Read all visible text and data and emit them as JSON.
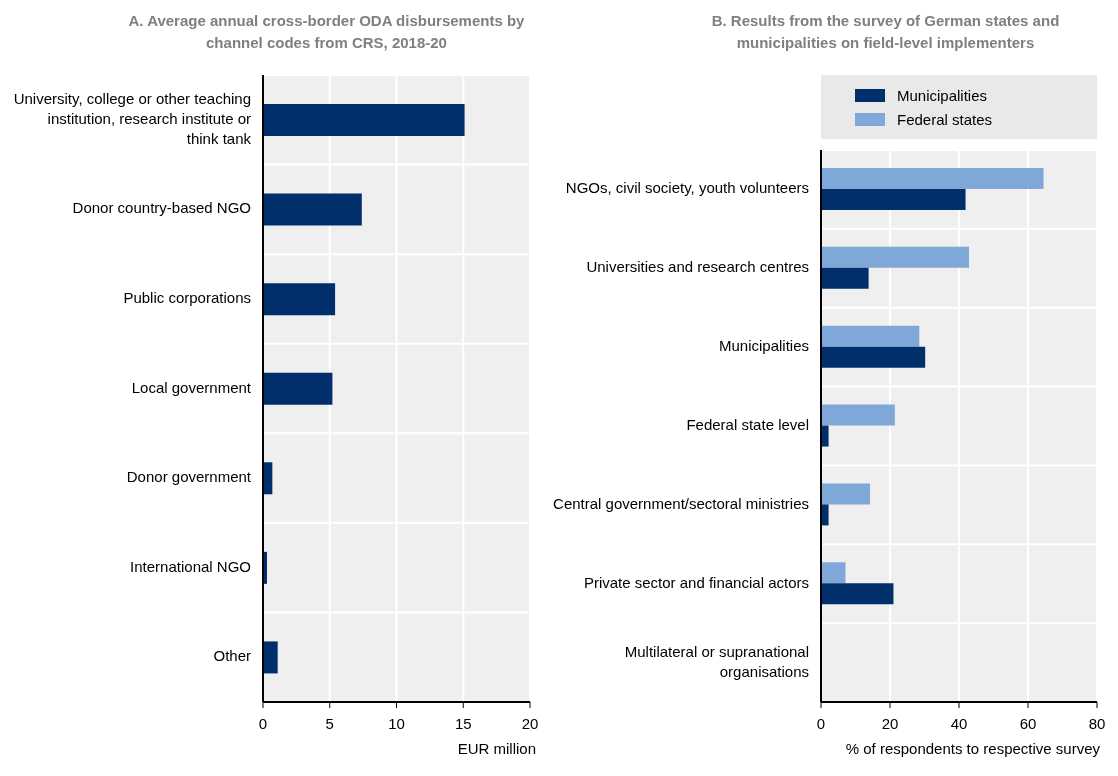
{
  "chart_data": [
    {
      "type": "bar",
      "orientation": "horizontal",
      "title": "A. Average annual cross-border ODA disbursements by channel codes from CRS, 2018-20",
      "xlabel": "EUR million",
      "categories": [
        "University, college or other teaching institution, research institute or think tank",
        "Donor country-based NGO",
        "Public corporations",
        "Local government",
        "Donor government",
        "International NGO",
        "Other"
      ],
      "series": [
        {
          "color": "#002f6c",
          "values": [
            15.1,
            7.4,
            5.4,
            5.2,
            0.7,
            0.3,
            1.1
          ]
        }
      ],
      "xlim": [
        0,
        20
      ],
      "xticks": [
        0,
        5,
        10,
        15,
        20
      ],
      "grid": true,
      "legend": false
    },
    {
      "type": "bar",
      "orientation": "horizontal",
      "title": "B. Results from the survey of German states and municipalities on field-level implementers",
      "xlabel": "% of respondents to respective survey",
      "categories": [
        "NGOs, civil society, youth volunteers",
        "Universities and research centres",
        "Municipalities",
        "Federal state level",
        "Central government/sectoral ministries",
        "Private sector and financial actors",
        "Multilateral or supranational organisations"
      ],
      "series": [
        {
          "name": "Municipalities",
          "color": "#002f6c",
          "values": [
            41.9,
            13.8,
            30.2,
            2.2,
            2.2,
            21.0,
            0
          ]
        },
        {
          "name": "Federal states",
          "color": "#7fa8d9",
          "values": [
            64.5,
            42.9,
            28.5,
            21.4,
            14.2,
            7.1,
            0
          ]
        }
      ],
      "xlim": [
        0,
        80
      ],
      "xticks": [
        0,
        20,
        40,
        60,
        80
      ],
      "grid": true,
      "legend": "top"
    }
  ]
}
